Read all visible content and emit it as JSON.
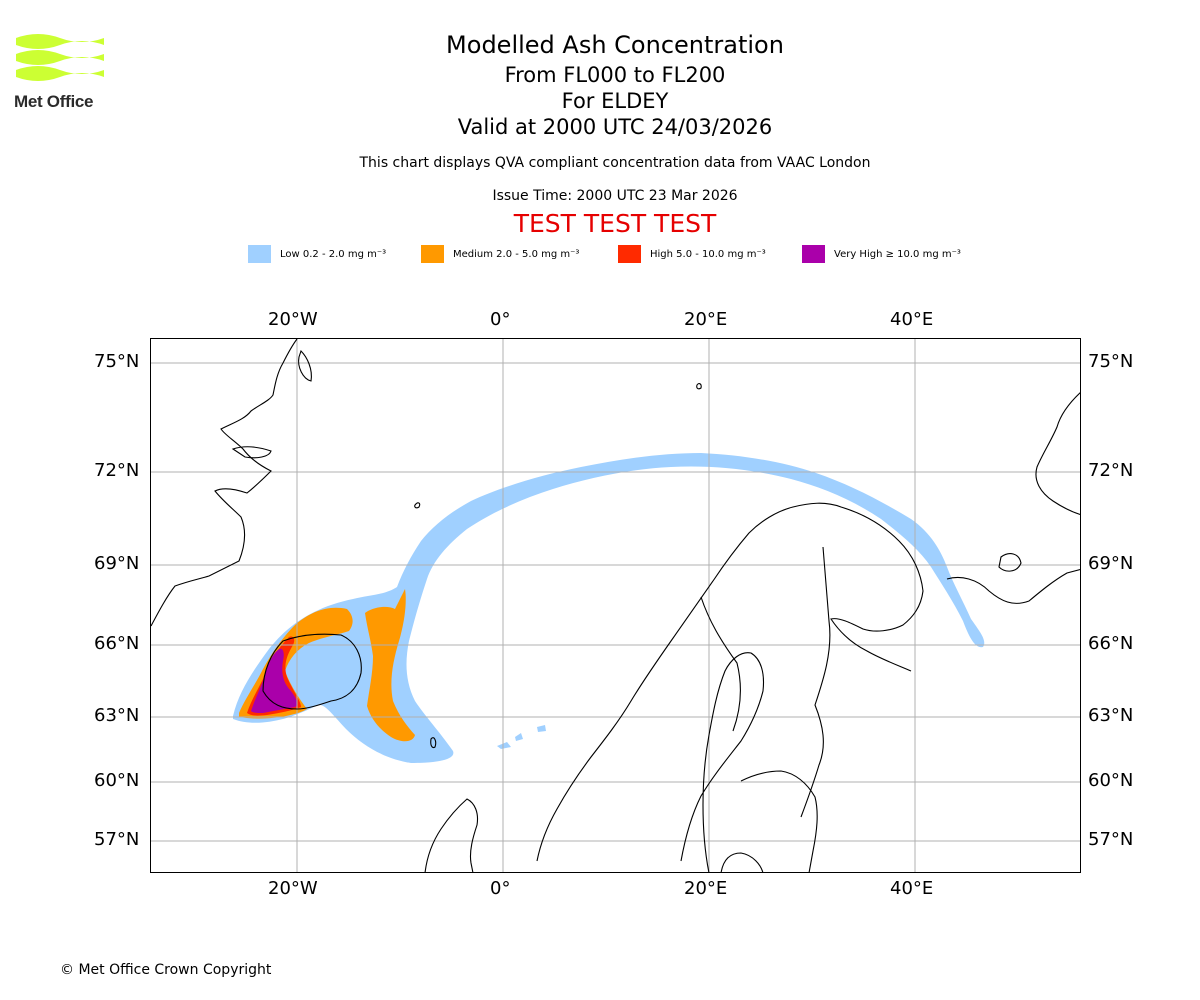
{
  "logo": {
    "text": "Met Office",
    "color": "#ccff33"
  },
  "header": {
    "title": "Modelled Ash Concentration",
    "levels": "From FL000 to FL200",
    "location": "For ELDEY",
    "valid": "Valid at 2000 UTC 24/03/2026",
    "description": "This chart displays QVA compliant concentration data from VAAC London",
    "issue_time": "Issue Time: 2000 UTC 23 Mar 2026",
    "test_banner": "TEST TEST TEST"
  },
  "legend": [
    {
      "label": "Low 0.2 - 2.0 mg m⁻³",
      "color": "#a0d0ff"
    },
    {
      "label": "Medium 2.0 - 5.0 mg m⁻³",
      "color": "#ff9900"
    },
    {
      "label": "High 5.0 - 10.0 mg m⁻³",
      "color": "#ff2a00"
    },
    {
      "label": "Very High ≥ 10.0 mg m⁻³",
      "color": "#aa00aa"
    }
  ],
  "map": {
    "lon_labels": [
      "20°W",
      "0°",
      "20°E",
      "40°E"
    ],
    "lat_labels": [
      "75°N",
      "72°N",
      "69°N",
      "66°N",
      "63°N",
      "60°N",
      "57°N"
    ]
  },
  "footer": {
    "copyright": "© Met Office Crown Copyright"
  }
}
